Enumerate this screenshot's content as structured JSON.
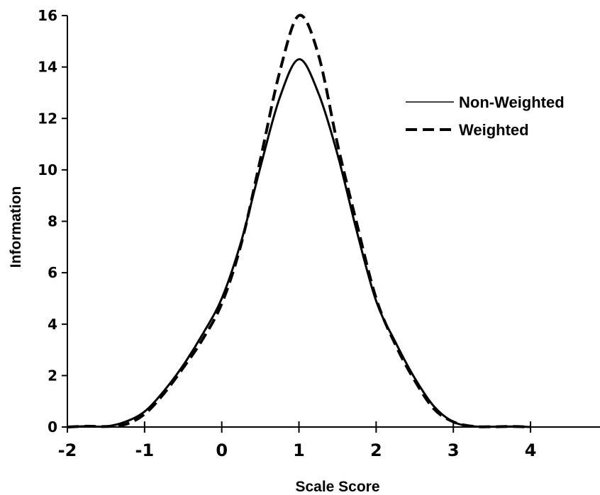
{
  "chart_data": {
    "type": "line",
    "xlabel": "Scale Score",
    "ylabel": "Information",
    "xlim": [
      -2,
      4.9
    ],
    "ylim": [
      0,
      16
    ],
    "x_ticks": [
      -2,
      -1,
      0,
      1,
      2,
      3,
      4
    ],
    "y_ticks": [
      0,
      2,
      4,
      6,
      8,
      10,
      12,
      14,
      16
    ],
    "grid": false,
    "legend_position": "right",
    "series": [
      {
        "name": "Non-Weighted",
        "style": "solid",
        "color": "#000000",
        "x": [
          -2.0,
          -1.75,
          -1.5,
          -1.25,
          -1.0,
          -0.75,
          -0.5,
          -0.25,
          0.0,
          0.25,
          0.5,
          0.75,
          1.0,
          1.25,
          1.5,
          1.75,
          2.0,
          2.25,
          2.5,
          2.75,
          3.0,
          3.25,
          3.5,
          3.75,
          4.0
        ],
        "y": [
          0.0,
          0.03,
          0.02,
          0.2,
          0.6,
          1.4,
          2.4,
          3.6,
          5.0,
          7.2,
          10.1,
          12.8,
          14.3,
          13.0,
          10.6,
          7.6,
          4.9,
          3.3,
          1.9,
          0.8,
          0.2,
          0.03,
          0.01,
          0.02,
          0.0
        ]
      },
      {
        "name": "Weighted",
        "style": "dashed",
        "color": "#000000",
        "x": [
          -2.0,
          -1.75,
          -1.5,
          -1.25,
          -1.0,
          -0.75,
          -0.5,
          -0.25,
          0.0,
          0.25,
          0.5,
          0.75,
          1.0,
          1.25,
          1.5,
          1.75,
          2.0,
          2.25,
          2.5,
          2.75,
          3.0,
          3.25,
          3.5,
          3.75,
          4.0
        ],
        "y": [
          0.0,
          0.03,
          0.02,
          0.1,
          0.5,
          1.3,
          2.3,
          3.4,
          4.8,
          7.1,
          10.4,
          13.8,
          16.0,
          14.5,
          11.0,
          7.9,
          5.0,
          3.2,
          1.8,
          0.7,
          0.2,
          0.03,
          0.01,
          0.02,
          0.0
        ]
      }
    ]
  }
}
